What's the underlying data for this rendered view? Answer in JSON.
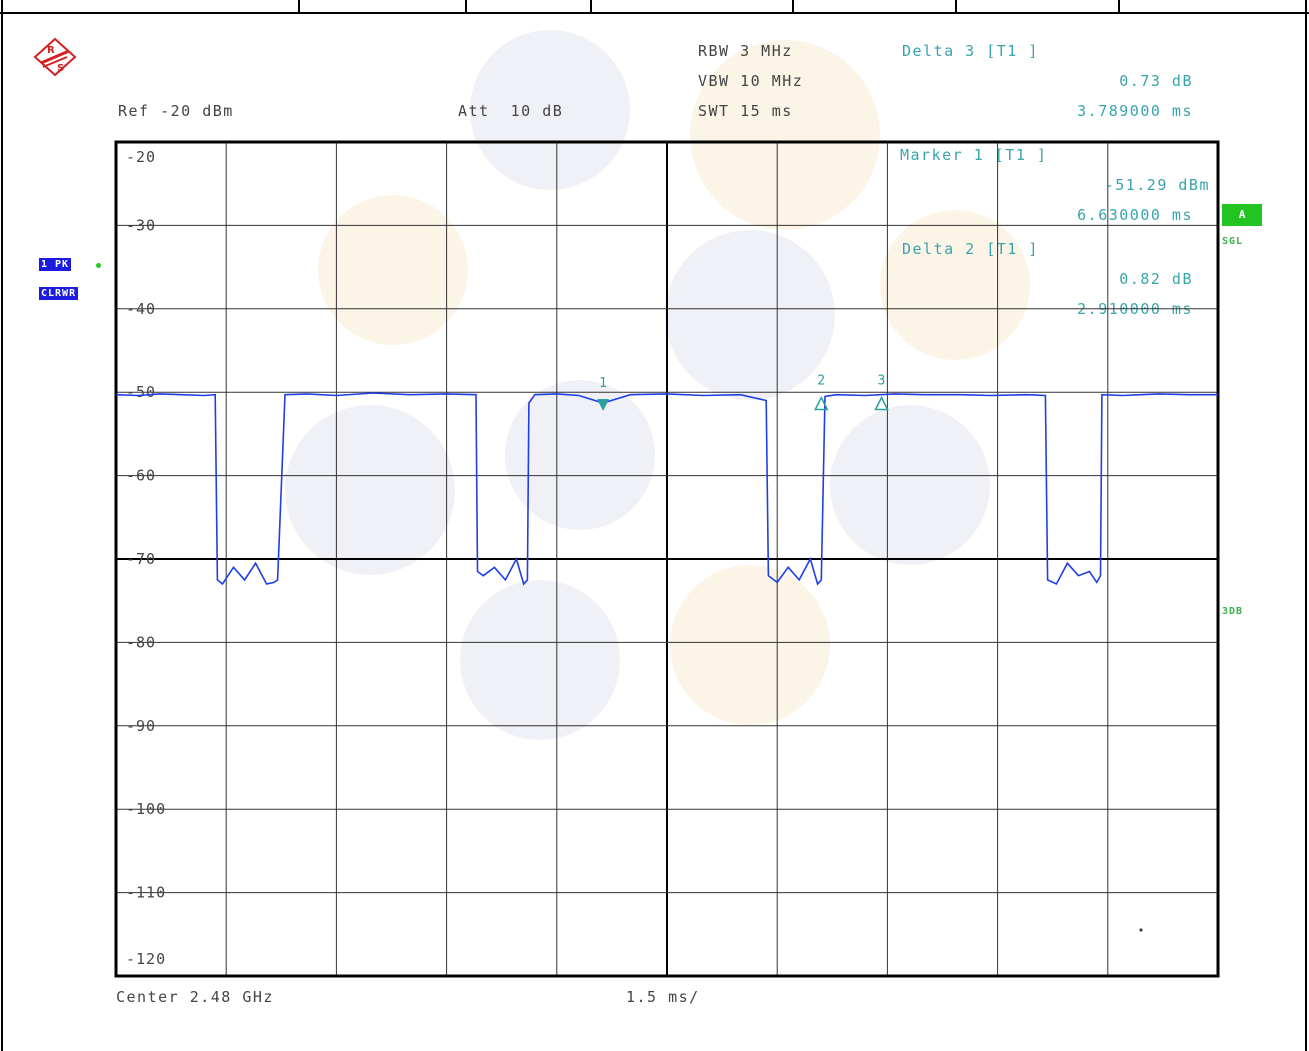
{
  "header": {
    "ref_level": "Ref -20 dBm",
    "attenuation": "Att  10 dB",
    "rbw": "RBW 3 MHz",
    "vbw": "VBW 10 MHz",
    "swt": "SWT 15 ms"
  },
  "markers": {
    "delta3": {
      "title": "Delta 3 [T1 ]",
      "level": "0.73 dB",
      "time": "3.789000 ms"
    },
    "marker1": {
      "title": "Marker 1 [T1 ]",
      "level": "-51.29 dBm",
      "time": "6.630000 ms"
    },
    "delta2": {
      "title": "Delta 2 [T1 ]",
      "level": "0.82 dB",
      "time": "2.910000 ms"
    }
  },
  "side_labels": {
    "trace_mode": "1 PK",
    "trace_clear": "CLRWR",
    "trigger_a": "A",
    "sweep_sgl": "SGL",
    "threshold": "3DB"
  },
  "footer": {
    "center": "Center 2.48 GHz",
    "span": "1.5 ms/"
  },
  "colors": {
    "trace": "#1f3fe6",
    "marker": "#2ba19b",
    "grid": "#000000",
    "label_cyan": "#37a5ad"
  },
  "icons": {
    "logo": "rohde-schwarz-logo-icon"
  },
  "chart_data": {
    "type": "line",
    "title": "",
    "xlabel": "",
    "ylabel": "",
    "x_unit": "ms",
    "y_unit": "dBm",
    "xlim": [
      0,
      15
    ],
    "ylim": [
      -120,
      -20
    ],
    "grid": true,
    "y_ticks": [
      -20,
      -30,
      -40,
      -50,
      -60,
      -70,
      -80,
      -90,
      -100,
      -110,
      -120
    ],
    "series": [
      {
        "x": [
          0,
          0.3,
          0.6,
          0.9,
          1.2,
          1.35,
          1.38,
          1.45,
          1.6,
          1.75,
          1.9,
          2.05,
          2.15,
          2.2,
          2.3,
          2.6,
          3.0,
          3.5,
          4.0,
          4.5,
          4.9,
          4.92,
          5.0,
          5.15,
          5.3,
          5.45,
          5.55,
          5.6,
          5.62,
          5.7,
          6.0,
          6.3,
          6.63,
          7.0,
          7.5,
          8.0,
          8.5,
          8.85,
          8.88,
          9.0,
          9.15,
          9.3,
          9.45,
          9.55,
          9.6,
          9.65,
          9.8,
          10.2,
          10.6,
          11.0,
          11.5,
          11.9,
          12.4,
          12.65,
          12.68,
          12.8,
          12.95,
          13.1,
          13.25,
          13.35,
          13.4,
          13.42,
          13.7,
          14.2,
          14.6,
          15.0
        ],
        "y": [
          -50.3,
          -50.4,
          -50.2,
          -50.3,
          -50.4,
          -50.3,
          -72.5,
          -73.0,
          -71.0,
          -72.5,
          -70.5,
          -73.0,
          -72.8,
          -72.5,
          -50.3,
          -50.2,
          -50.4,
          -50.1,
          -50.3,
          -50.2,
          -50.3,
          -71.5,
          -72.0,
          -71.0,
          -72.5,
          -70.0,
          -73.0,
          -72.5,
          -51.3,
          -50.3,
          -50.2,
          -50.4,
          -51.29,
          -50.3,
          -50.2,
          -50.4,
          -50.3,
          -51.0,
          -72.0,
          -72.8,
          -71.0,
          -72.5,
          -70.0,
          -73.0,
          -72.5,
          -50.5,
          -50.3,
          -50.4,
          -50.2,
          -50.3,
          -50.3,
          -50.4,
          -50.3,
          -50.4,
          -72.5,
          -73.0,
          -70.5,
          -72.0,
          -71.5,
          -72.8,
          -72.0,
          -50.3,
          -50.4,
          -50.2,
          -50.3,
          -50.3
        ]
      }
    ],
    "marker_points": [
      {
        "label": "1",
        "x": 6.63,
        "y": -51.29,
        "shape": "down"
      },
      {
        "label": "2",
        "x": 9.6,
        "y": -51.0,
        "shape": "up"
      },
      {
        "label": "3",
        "x": 10.42,
        "y": -51.0,
        "shape": "up"
      }
    ]
  }
}
